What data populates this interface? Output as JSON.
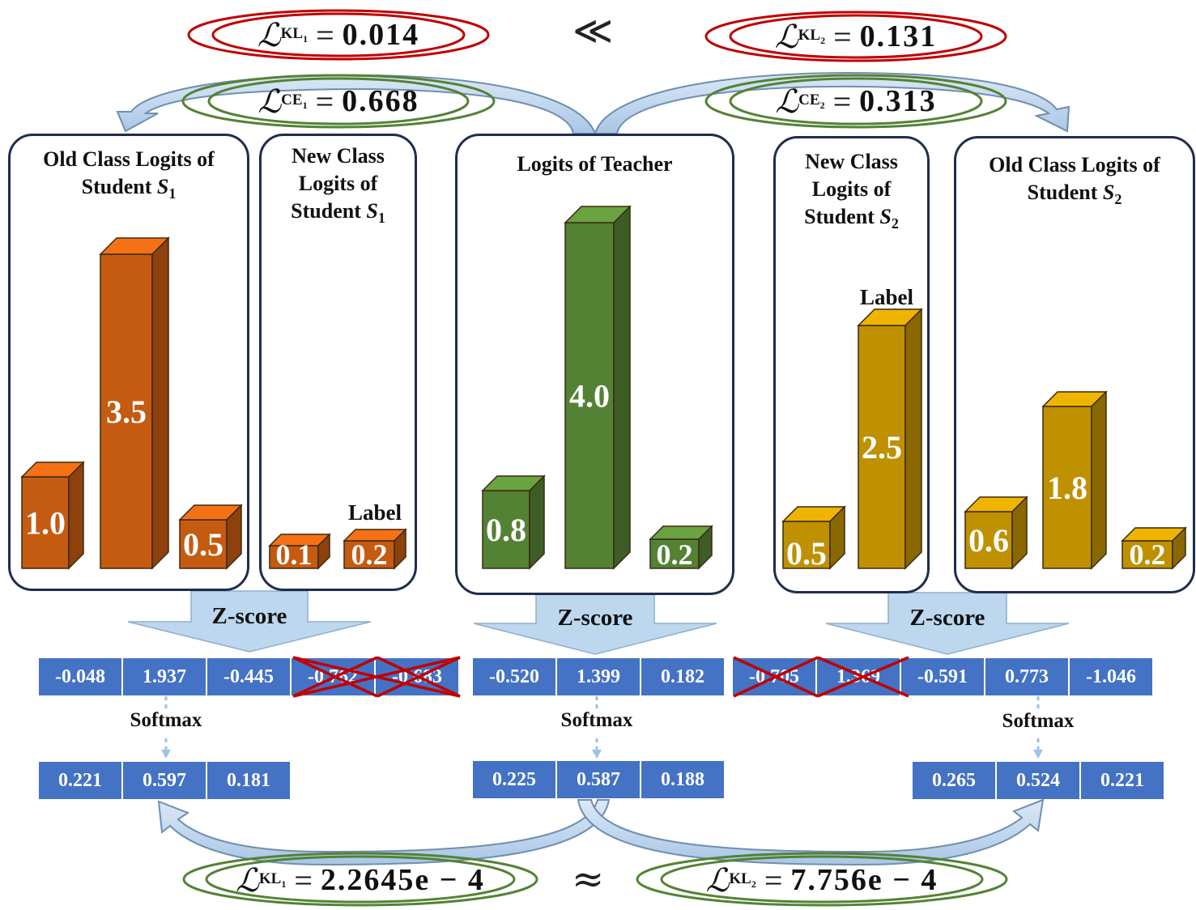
{
  "top_formulas": {
    "kl1": {
      "symbol": "ℒ",
      "sub": "KL",
      "subsub": "1",
      "value": "0.014"
    },
    "relation": "≪",
    "kl2": {
      "symbol": "ℒ",
      "sub": "KL",
      "subsub": "2",
      "value": "0.131"
    },
    "ce1": {
      "symbol": "ℒ",
      "sub": "CE",
      "subsub": "1",
      "value": "0.668"
    },
    "ce2": {
      "symbol": "ℒ",
      "sub": "CE",
      "subsub": "2",
      "value": "0.313"
    }
  },
  "bottom_formulas": {
    "kl1": {
      "symbol": "ℒ",
      "sub": "KL",
      "subsub": "1",
      "value": "2.2645e − 4"
    },
    "relation": "≈",
    "kl2": {
      "symbol": "ℒ",
      "sub": "KL",
      "subsub": "2",
      "value": "7.756e − 4"
    }
  },
  "panels": {
    "s1_old": {
      "title_line1": "Old Class Logits of",
      "title_line2": "Student ",
      "student": "S",
      "index": "1"
    },
    "s1_new": {
      "title_line1": "New Class",
      "title_line2": "Logits of",
      "title_line3": "Student ",
      "student": "S",
      "index": "1",
      "label_text": "Label"
    },
    "teacher": {
      "title": "Logits of Teacher"
    },
    "s2_new": {
      "title_line1": "New Class",
      "title_line2": "Logits of",
      "title_line3": "Student ",
      "student": "S",
      "index": "2",
      "label_text": "Label"
    },
    "s2_old": {
      "title_line1": "Old Class Logits of",
      "title_line2": "Student ",
      "student": "S",
      "index": "2"
    }
  },
  "bars": {
    "s1_old": [
      "1.0",
      "3.5",
      "0.5"
    ],
    "s1_new": [
      "0.1",
      "0.2"
    ],
    "teacher": [
      "0.8",
      "4.0",
      "0.2"
    ],
    "s2_new": [
      "0.5",
      "2.5"
    ],
    "s2_old": [
      "0.6",
      "1.8",
      "0.2"
    ]
  },
  "colors": {
    "orange": "#c55a11",
    "green": "#548235",
    "gold": "#bf9000",
    "cell_blue": "#4472c4",
    "arrow_fill": "#bdd7ee",
    "red_ellipse": "#c00000",
    "green_ellipse": "#548235",
    "cross_red": "#c00000"
  },
  "zscore_label": "Z-score",
  "softmax_label": "Softmax",
  "zscore_rows": {
    "left": [
      "-0.048",
      "1.937",
      "-0.445",
      "-0.762",
      "-0.683"
    ],
    "middle": [
      "-0.520",
      "1.399",
      "0.182"
    ],
    "right": [
      "-0.705",
      "1.369",
      "-0.591",
      "0.773",
      "-1.046"
    ]
  },
  "softmax_rows": {
    "left": [
      "0.221",
      "0.597",
      "0.181"
    ],
    "middle": [
      "0.225",
      "0.587",
      "0.188"
    ],
    "right": [
      "0.265",
      "0.524",
      "0.221"
    ]
  }
}
